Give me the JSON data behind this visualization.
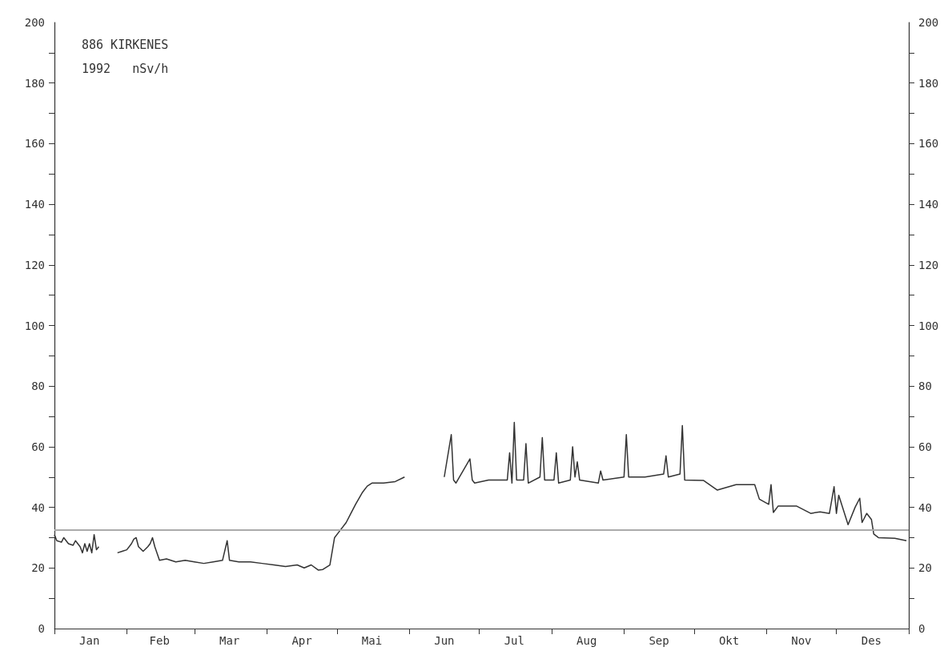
{
  "chart_data": {
    "type": "line",
    "annotations": [
      "886 KIRKENES",
      "1992   nSv/h"
    ],
    "x": [
      "1992-01-01",
      "1992-01-02",
      "1992-01-04",
      "1992-01-05",
      "1992-01-07",
      "1992-01-09",
      "1992-01-10",
      "1992-01-12",
      "1992-01-13",
      "1992-01-14",
      "1992-01-15",
      "1992-01-16",
      "1992-01-17",
      "1992-01-18",
      "1992-01-19",
      "1992-01-20",
      "1992-01-24",
      "1992-01-28",
      "1992-01-30",
      "1992-02-01",
      "1992-02-03",
      "1992-02-04",
      "1992-02-05",
      "1992-02-06",
      "1992-02-08",
      "1992-02-10",
      "1992-02-11",
      "1992-02-12",
      "1992-02-13",
      "1992-02-15",
      "1992-02-18",
      "1992-02-22",
      "1992-02-26",
      "1992-03-01",
      "1992-03-05",
      "1992-03-09",
      "1992-03-13",
      "1992-03-15",
      "1992-03-16",
      "1992-03-20",
      "1992-03-25",
      "1992-03-30",
      "1992-04-04",
      "1992-04-09",
      "1992-04-14",
      "1992-04-17",
      "1992-04-20",
      "1992-04-23",
      "1992-04-25",
      "1992-04-28",
      "1992-04-30",
      "1992-05-02",
      "1992-05-05",
      "1992-05-07",
      "1992-05-09",
      "1992-05-12",
      "1992-05-14",
      "1992-05-16",
      "1992-05-21",
      "1992-05-26",
      "1992-05-30",
      "1992-06-08",
      "1992-06-16",
      "1992-06-19",
      "1992-06-20",
      "1992-06-21",
      "1992-06-27",
      "1992-06-28",
      "1992-06-29",
      "1992-07-05",
      "1992-07-13",
      "1992-07-14",
      "1992-07-15",
      "1992-07-16",
      "1992-07-17",
      "1992-07-20",
      "1992-07-21",
      "1992-07-22",
      "1992-07-27",
      "1992-07-28",
      "1992-07-29",
      "1992-08-02",
      "1992-08-03",
      "1992-08-04",
      "1992-08-09",
      "1992-08-10",
      "1992-08-11",
      "1992-08-12",
      "1992-08-13",
      "1992-08-21",
      "1992-08-22",
      "1992-08-23",
      "1992-09-01",
      "1992-09-02",
      "1992-09-03",
      "1992-09-10",
      "1992-09-18",
      "1992-09-19",
      "1992-09-20",
      "1992-09-25",
      "1992-09-26",
      "1992-09-27",
      "1992-10-05",
      "1992-10-11",
      "1992-10-19",
      "1992-10-27",
      "1992-10-29",
      "1992-11-02",
      "1992-11-03",
      "1992-11-04",
      "1992-11-06",
      "1992-11-14",
      "1992-11-20",
      "1992-11-24",
      "1992-11-28",
      "1992-11-30",
      "1992-12-01",
      "1992-12-02",
      "1992-12-06",
      "1992-12-09",
      "1992-12-11",
      "1992-12-12",
      "1992-12-14",
      "1992-12-16",
      "1992-12-17",
      "1992-12-19",
      "1992-12-26",
      "1992-12-31"
    ],
    "values": [
      31,
      29,
      28.5,
      30,
      28,
      27.5,
      29,
      27,
      25,
      28,
      25.5,
      28,
      25,
      31,
      26,
      27,
      null,
      25,
      25.5,
      26,
      28,
      29.5,
      30,
      27,
      25.5,
      27,
      28,
      30,
      27,
      22.5,
      23,
      22,
      22.5,
      22,
      21.5,
      22,
      22.5,
      29,
      22.5,
      22,
      22,
      21.5,
      21,
      20.5,
      21,
      20,
      21,
      19.3,
      19.5,
      21,
      30,
      32,
      35,
      38,
      41,
      45,
      47,
      48,
      48,
      48.5,
      50,
      null,
      50,
      64,
      49,
      48,
      56,
      49,
      48,
      49,
      49,
      58,
      48,
      68,
      49,
      49,
      61,
      48,
      50,
      63,
      49,
      49,
      58,
      48,
      49,
      60,
      50,
      55,
      49,
      48,
      52,
      49,
      50,
      64,
      50,
      50,
      51,
      57,
      50,
      51,
      67,
      49,
      48.9,
      45.7,
      47.5,
      47.5,
      42.7,
      41,
      47.5,
      38.3,
      40.4,
      40.4,
      38,
      38.5,
      38,
      46.8,
      38,
      44,
      34.3,
      40,
      43,
      35,
      38,
      36,
      31.2,
      30,
      29.8,
      29
    ],
    "color": "#333333",
    "marker": "none",
    "xlim": [
      "1992-01-01",
      "1993-01-01"
    ],
    "xticks": [
      {
        "value": "1992-01-01",
        "label": null
      },
      {
        "value": "1992-01-16",
        "label": "Jan"
      },
      {
        "value": "1992-02-01",
        "label": null
      },
      {
        "value": "1992-02-15",
        "label": "Feb"
      },
      {
        "value": "1992-03-01",
        "label": null
      },
      {
        "value": "1992-03-16",
        "label": "Mar"
      },
      {
        "value": "1992-04-01",
        "label": null
      },
      {
        "value": "1992-04-16",
        "label": "Apr"
      },
      {
        "value": "1992-05-01",
        "label": null
      },
      {
        "value": "1992-05-16",
        "label": "Mai"
      },
      {
        "value": "1992-06-01",
        "label": null
      },
      {
        "value": "1992-06-16",
        "label": "Jun"
      },
      {
        "value": "1992-07-01",
        "label": null
      },
      {
        "value": "1992-07-16",
        "label": "Jul"
      },
      {
        "value": "1992-08-01",
        "label": null
      },
      {
        "value": "1992-08-16",
        "label": "Aug"
      },
      {
        "value": "1992-09-01",
        "label": null
      },
      {
        "value": "1992-09-16",
        "label": "Sep"
      },
      {
        "value": "1992-10-01",
        "label": null
      },
      {
        "value": "1992-10-16",
        "label": "Okt"
      },
      {
        "value": "1992-11-01",
        "label": null
      },
      {
        "value": "1992-11-16",
        "label": "Nov"
      },
      {
        "value": "1992-12-01",
        "label": null
      },
      {
        "value": "1992-12-16",
        "label": "Des"
      },
      {
        "value": "1993-01-01",
        "label": null
      }
    ],
    "ylim": [
      0,
      200
    ],
    "yticks": [
      0,
      {
        "value": 10,
        "label": null
      },
      20,
      {
        "value": 30,
        "label": null
      },
      40,
      {
        "value": 50,
        "label": null
      },
      60,
      {
        "value": 70,
        "label": null
      },
      80,
      {
        "value": 90,
        "label": null
      },
      100,
      {
        "value": 110,
        "label": null
      },
      120,
      {
        "value": 130,
        "label": null
      },
      140,
      {
        "value": 150,
        "label": null
      },
      160,
      {
        "value": 170,
        "label": null
      },
      180,
      {
        "value": 190,
        "label": null
      },
      200
    ],
    "y2lim": [
      0,
      200
    ],
    "y2ticks": [
      0,
      {
        "value": 10,
        "label": null
      },
      20,
      {
        "value": 30,
        "label": null
      },
      40,
      {
        "value": 50,
        "label": null
      },
      60,
      {
        "value": 70,
        "label": null
      },
      80,
      {
        "value": 90,
        "label": null
      },
      100,
      {
        "value": 110,
        "label": null
      },
      120,
      {
        "value": 130,
        "label": null
      },
      140,
      {
        "value": 150,
        "label": null
      },
      160,
      {
        "value": 170,
        "label": null
      },
      180,
      {
        "value": 190,
        "label": null
      },
      200
    ],
    "ref_lines": [
      {
        "axis": "y",
        "value": 32.5,
        "color": "#aaaaaa"
      }
    ],
    "line_style": "solid"
  }
}
